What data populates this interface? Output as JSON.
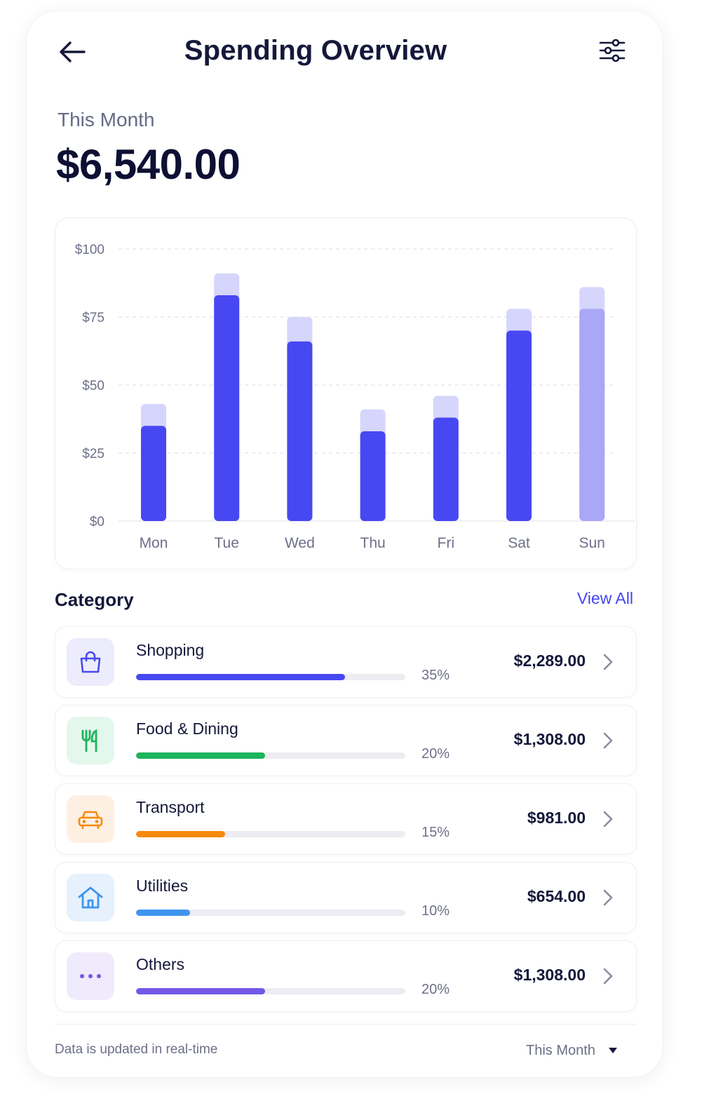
{
  "header": {
    "title": "Spending Overview",
    "back_icon": "arrow-left-icon",
    "filter_icon": "sliders-icon"
  },
  "summary": {
    "period_label": "This Month",
    "total": "$6,540.00"
  },
  "chart_data": {
    "type": "bar",
    "categories": [
      "Mon",
      "Tue",
      "Wed",
      "Thu",
      "Fri",
      "Sat",
      "Sun"
    ],
    "series": [
      {
        "values": [
          35,
          83,
          66,
          33,
          38,
          70,
          78
        ]
      },
      {
        "values": [
          43,
          91,
          75,
          41,
          46,
          78,
          86
        ]
      }
    ],
    "highlighted_category": "Sun",
    "yticks": [
      "$0",
      "$25",
      "$50",
      "$75",
      "$100"
    ],
    "ylim": [
      0,
      100
    ],
    "grid": true,
    "colors": {
      "primary": "#4848f2",
      "secondary": "#d6d5fb",
      "highlight_primary": "#a9a7f6",
      "highlight_secondary": "#d6d5fb"
    }
  },
  "categories": {
    "heading": "Category",
    "view_all": "View All",
    "items": [
      {
        "name": "Shopping",
        "percent_label": "35%",
        "share": 0.35,
        "amount": "$2,289.00",
        "icon": "shopping-bag-icon",
        "color": "#4848f2",
        "bg": "#ececfd",
        "fill": 0.775
      },
      {
        "name": "Food & Dining",
        "percent_label": "20%",
        "share": 0.2,
        "amount": "$1,308.00",
        "icon": "utensils-icon",
        "color": "#1db45b",
        "bg": "#e4f7ec",
        "fill": 0.48
      },
      {
        "name": "Transport",
        "percent_label": "15%",
        "share": 0.15,
        "amount": "$981.00",
        "icon": "car-icon",
        "color": "#f68a0c",
        "bg": "#fdf0e3",
        "fill": 0.33
      },
      {
        "name": "Utilities",
        "percent_label": "10%",
        "share": 0.1,
        "amount": "$654.00",
        "icon": "home-icon",
        "color": "#3f94ee",
        "bg": "#e6f1fd",
        "fill": 0.2
      },
      {
        "name": "Others",
        "percent_label": "20%",
        "share": 0.2,
        "amount": "$1,308.00",
        "icon": "more-dots-icon",
        "color": "#7358e6",
        "bg": "#efebfc",
        "fill": 0.48
      }
    ]
  },
  "footer": {
    "note": "Data is updated in real-time",
    "period_select": "This Month",
    "dropdown_icon": "caret-down-icon"
  }
}
